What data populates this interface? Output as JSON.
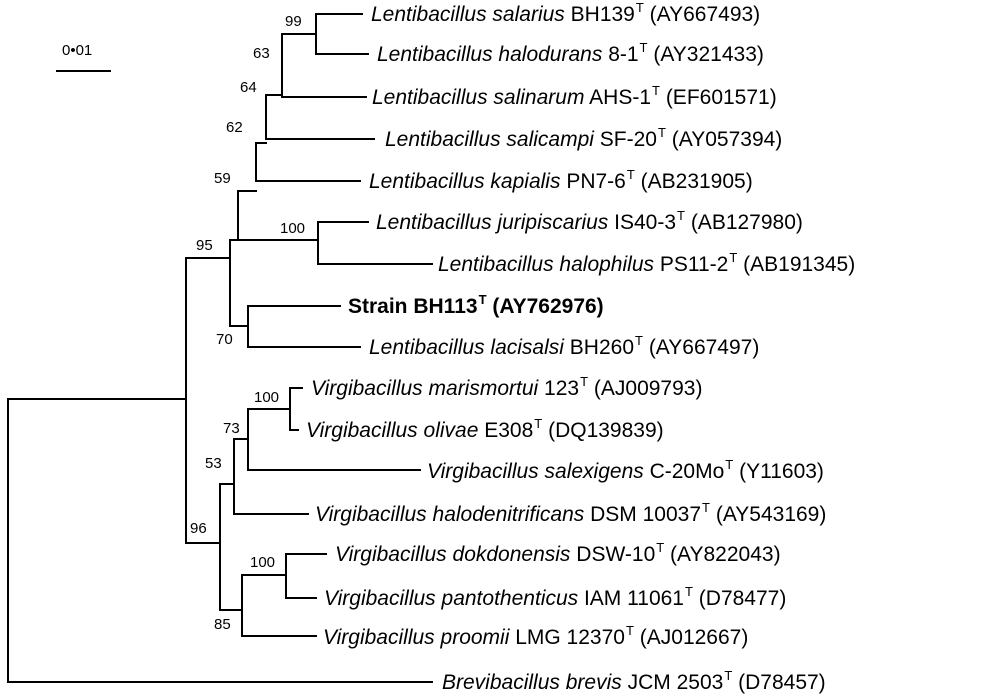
{
  "scale_bar": {
    "label": "0•01"
  },
  "taxa": [
    {
      "genus": "Lentibacillus",
      "species": "salarius",
      "strain": "BH139",
      "type_mark": "T",
      "accession": "(AY667493)"
    },
    {
      "genus": "Lentibacillus",
      "species": "halodurans",
      "strain": "8-1",
      "type_mark": "T",
      "accession": "(AY321433)"
    },
    {
      "genus": "Lentibacillus",
      "species": "salinarum",
      "strain": "AHS-1",
      "type_mark": "T",
      "accession": "(EF601571)"
    },
    {
      "genus": "Lentibacillus",
      "species": "salicampi",
      "strain": "SF-20",
      "type_mark": "T",
      "accession": "(AY057394)"
    },
    {
      "genus": "Lentibacillus",
      "species": "kapialis",
      "strain": "PN7-6",
      "type_mark": "T",
      "accession": "(AB231905)"
    },
    {
      "genus": "Lentibacillus",
      "species": "juripiscarius",
      "strain": "IS40-3",
      "type_mark": "T",
      "accession": "(AB127980)"
    },
    {
      "genus": "Lentibacillus",
      "species": "halophilus",
      "strain": "PS11-2",
      "type_mark": "T",
      "accession": "(AB191345)"
    },
    {
      "genus": "",
      "species": "",
      "strain": "Strain BH113",
      "type_mark": "T",
      "accession": "(AY762976)"
    },
    {
      "genus": "Lentibacillus",
      "species": "lacisalsi",
      "strain": "BH260",
      "type_mark": "T",
      "accession": "(AY667497)"
    },
    {
      "genus": "Virgibacillus",
      "species": "marismortui",
      "strain": "123",
      "type_mark": "T",
      "accession": "(AJ009793)"
    },
    {
      "genus": "Virgibacillus",
      "species": "olivae",
      "strain": "E308",
      "type_mark": "T",
      "accession": "(DQ139839)"
    },
    {
      "genus": "Virgibacillus",
      "species": "salexigens",
      "strain": "C-20Mo",
      "type_mark": "T",
      "accession": "(Y11603)"
    },
    {
      "genus": "Virgibacillus",
      "species": "halodenitrificans",
      "strain": "DSM 10037",
      "type_mark": "T",
      "accession": "(AY543169)"
    },
    {
      "genus": "Virgibacillus",
      "species": "dokdonensis",
      "strain": "DSW-10",
      "type_mark": "T",
      "accession": "(AY822043)"
    },
    {
      "genus": "Virgibacillus",
      "species": "pantothenticus",
      "strain": "IAM 11061",
      "type_mark": "T",
      "accession": "(D78477)"
    },
    {
      "genus": "Virgibacillus",
      "species": "proomii",
      "strain": "LMG 12370",
      "type_mark": "T",
      "accession": "(AJ012667)"
    },
    {
      "genus": "Brevibacillus",
      "species": "brevis",
      "strain": "JCM 2503",
      "type_mark": "T",
      "accession": "(D78457)"
    }
  ],
  "bootstrap": [
    "99",
    "63",
    "64",
    "62",
    "59",
    "100",
    "95",
    "70",
    "100",
    "73",
    "53",
    "96",
    "100",
    "85"
  ]
}
